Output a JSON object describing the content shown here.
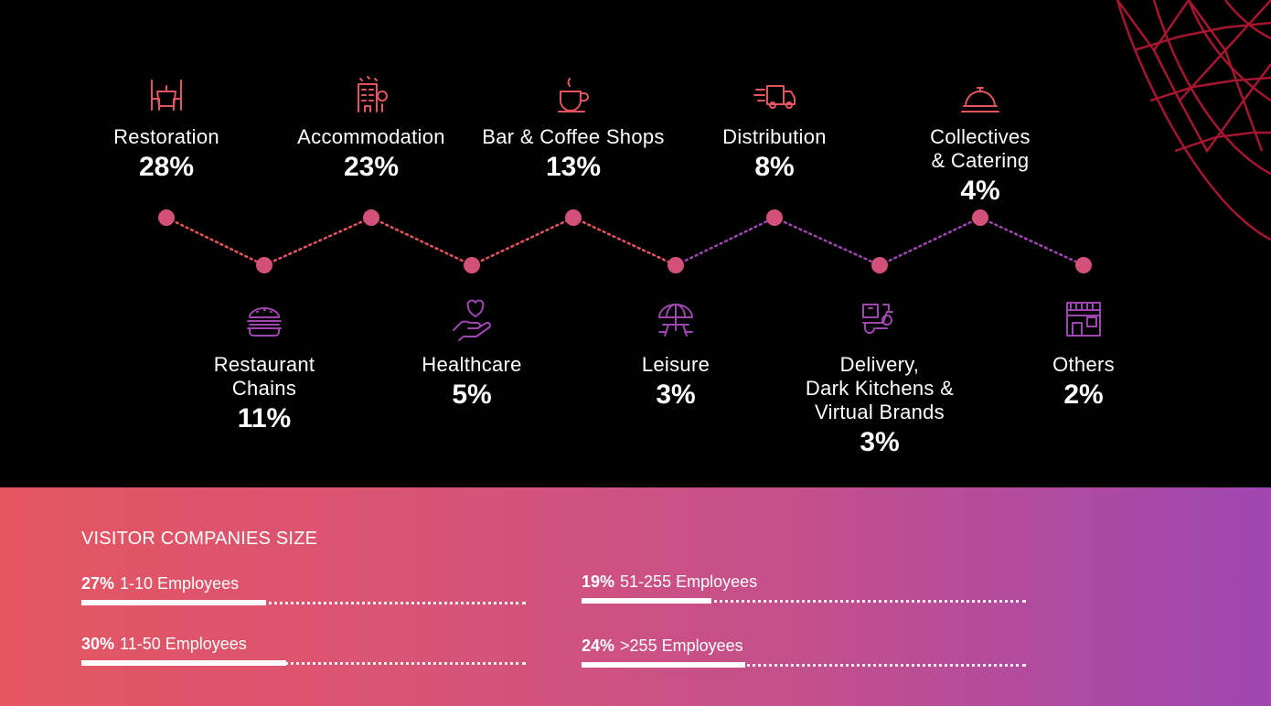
{
  "chart_data": {
    "type": "line",
    "sectors": [
      {
        "label": "Restoration",
        "pct": "28%",
        "value": 28,
        "icon": "dining-table-icon",
        "row": "top"
      },
      {
        "label": "Restaurant\nChains",
        "pct": "11%",
        "value": 11,
        "icon": "burger-icon",
        "row": "bottom"
      },
      {
        "label": "Accommodation",
        "pct": "23%",
        "value": 23,
        "icon": "hotel-icon",
        "row": "top"
      },
      {
        "label": "Healthcare",
        "pct": "5%",
        "value": 5,
        "icon": "heart-hand-icon",
        "row": "bottom"
      },
      {
        "label": "Bar & Coffee Shops",
        "pct": "13%",
        "value": 13,
        "icon": "coffee-cup-icon",
        "row": "top"
      },
      {
        "label": "Leisure",
        "pct": "3%",
        "value": 3,
        "icon": "umbrella-table-icon",
        "row": "bottom"
      },
      {
        "label": "Distribution",
        "pct": "8%",
        "value": 8,
        "icon": "delivery-truck-icon",
        "row": "top"
      },
      {
        "label": "Delivery,\nDark Kitchens &\nVirtual Brands",
        "pct": "3%",
        "value": 3,
        "icon": "delivery-scooter-icon",
        "row": "bottom"
      },
      {
        "label": "Collectives\n& Catering",
        "pct": "4%",
        "value": 4,
        "icon": "cloche-icon",
        "row": "top"
      },
      {
        "label": "Others",
        "pct": "2%",
        "value": 2,
        "icon": "storefront-icon",
        "row": "bottom"
      }
    ]
  },
  "company_size": {
    "title": "VISITOR COMPANIES SIZE",
    "items": [
      {
        "pct": "27%",
        "label": "1-10 Employees",
        "value": 27
      },
      {
        "pct": "30%",
        "label": "11-50 Employees",
        "value": 30
      },
      {
        "pct": "19%",
        "label": "51-255 Employees",
        "value": 19
      },
      {
        "pct": "24%",
        "label": ">255 Employees",
        "value": 24
      }
    ]
  },
  "colors": {
    "accent_start": "#e45560",
    "accent_end": "#9e46b0",
    "dot": "#d2507a"
  }
}
